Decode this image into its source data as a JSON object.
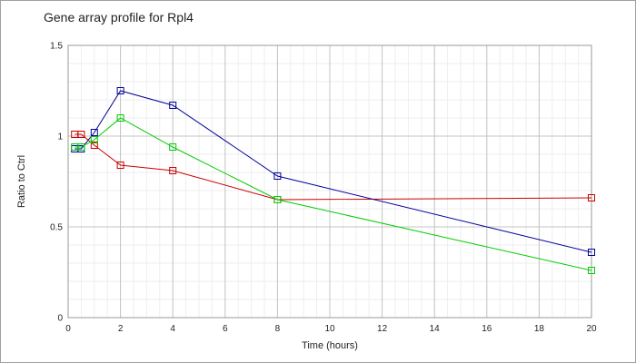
{
  "chart_data": {
    "type": "line",
    "title": "Gene array profile for Rpl4",
    "xlabel": "Time (hours)",
    "ylabel": "Ratio to Ctrl",
    "xlim": [
      0,
      20
    ],
    "ylim": [
      0,
      1.5
    ],
    "x_ticks": [
      "0",
      "2",
      "4",
      "6",
      "8",
      "10",
      "12",
      "14",
      "16",
      "18",
      "20"
    ],
    "y_ticks": [
      "0",
      "0.5",
      "1",
      "1.5"
    ],
    "grid": true,
    "legend": "none",
    "series": [
      {
        "color": "#cc0000",
        "x": [
          0.25,
          0.5,
          1,
          2,
          4,
          8,
          20
        ],
        "y": [
          1.01,
          1.01,
          0.95,
          0.84,
          0.81,
          0.65,
          0.66
        ]
      },
      {
        "color": "#000099",
        "x": [
          0.25,
          0.5,
          1,
          2,
          4,
          8,
          20
        ],
        "y": [
          0.93,
          0.93,
          1.02,
          1.25,
          1.17,
          0.78,
          0.36
        ]
      },
      {
        "color": "#00cc00",
        "x": [
          0.25,
          0.5,
          1,
          2,
          4,
          8,
          20
        ],
        "y": [
          0.94,
          0.94,
          0.98,
          1.1,
          0.94,
          0.65,
          0.26
        ]
      }
    ]
  }
}
